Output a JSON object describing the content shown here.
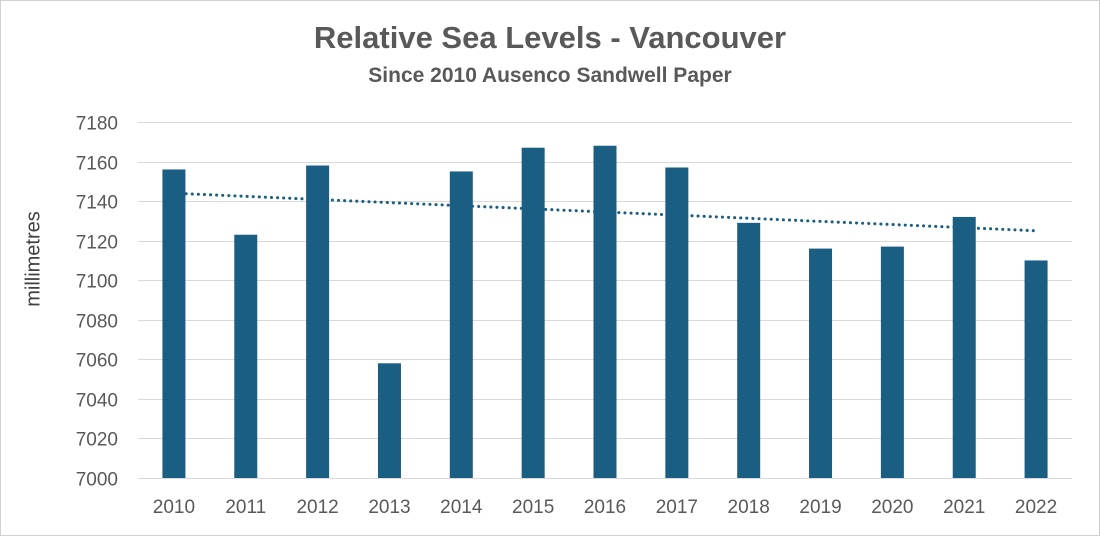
{
  "chart_data": {
    "type": "bar",
    "title": "Relative Sea Levels - Vancouver",
    "subtitle": "Since 2010 Ausenco Sandwell Paper",
    "xlabel": "",
    "ylabel": "millimetres",
    "categories": [
      "2010",
      "2011",
      "2012",
      "2013",
      "2014",
      "2015",
      "2016",
      "2017",
      "2018",
      "2019",
      "2020",
      "2021",
      "2022"
    ],
    "values": [
      7156,
      7123,
      7158,
      7058,
      7155,
      7167,
      7168,
      7157,
      7129,
      7116,
      7117,
      7132,
      7110
    ],
    "ylim": [
      7000,
      7180
    ],
    "yticks": [
      7000,
      7020,
      7040,
      7060,
      7080,
      7100,
      7120,
      7140,
      7160,
      7180
    ],
    "grid": true,
    "trendline": {
      "type": "linear",
      "style": "dotted",
      "start_value": 7144,
      "end_value": 7125
    },
    "colors": {
      "bar": "#1a5f83",
      "trend": "#1a5f83",
      "grid": "#d9d9d9",
      "text": "#595959"
    }
  }
}
